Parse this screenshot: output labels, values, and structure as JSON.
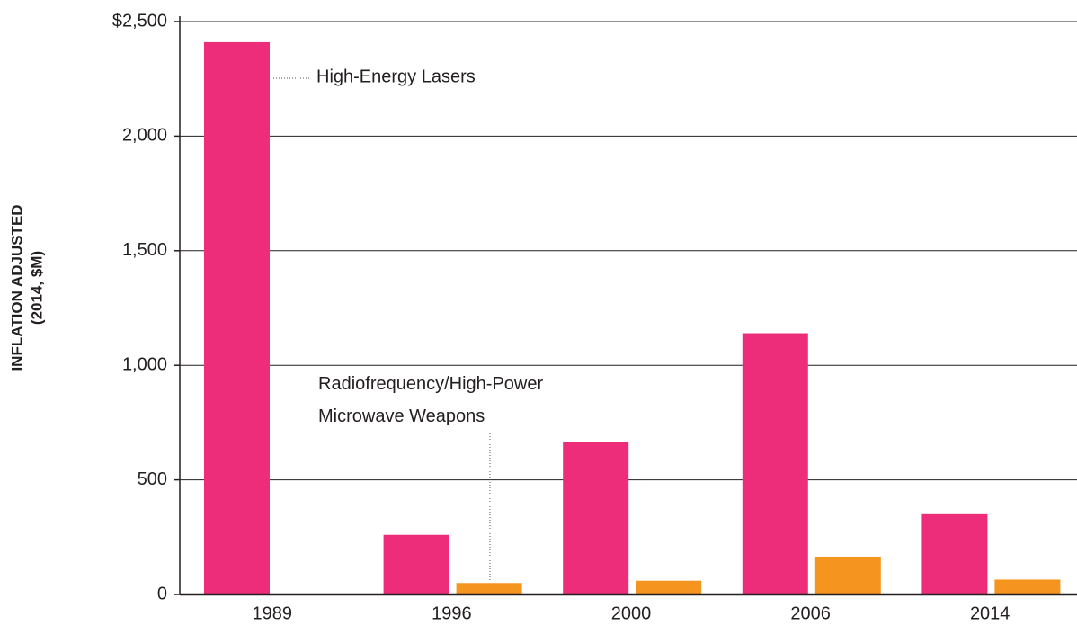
{
  "chart_data": {
    "type": "bar",
    "ylabel": [
      "INFLATION ADJUSTED",
      "(2014, $M)"
    ],
    "categories": [
      "1989",
      "1996",
      "2000",
      "2006",
      "2014"
    ],
    "series": [
      {
        "name": "High-Energy Lasers",
        "color": "#ee2d7a",
        "values": [
          2410,
          260,
          665,
          1140,
          350
        ]
      },
      {
        "name": "Radiofrequency/High-Power Microwave Weapons",
        "color": "#f5951f",
        "values": [
          0,
          50,
          60,
          165,
          65
        ]
      }
    ],
    "ylim": [
      0,
      2500
    ],
    "yticks": [
      0,
      500,
      {
        "value": 1000,
        "label": "1,000"
      },
      {
        "value": 1500,
        "label": "1,500"
      },
      {
        "value": 2000,
        "label": "2,000"
      },
      {
        "value": 2500,
        "label": "$2,500"
      }
    ],
    "grid": true
  }
}
